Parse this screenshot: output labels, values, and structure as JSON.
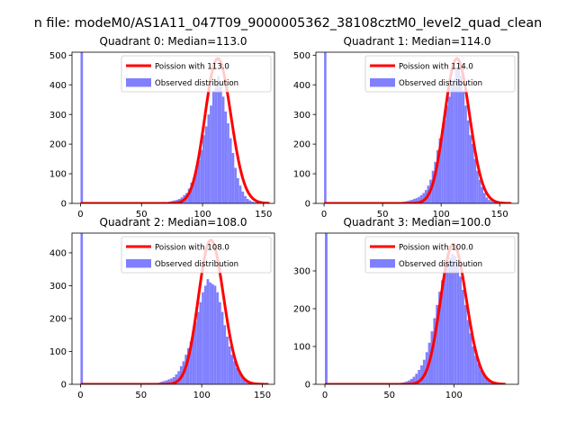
{
  "figure": {
    "suptitle": "n file: modeM0/AS1A11_047T09_9000005362_38108cztM0_level2_quad_clean"
  },
  "chart_data": [
    {
      "type": "bar",
      "title": "Quadrant 0: Median=113.0",
      "xlim": [
        -7,
        159
      ],
      "ylim": [
        0,
        510
      ],
      "xticks": [
        0,
        50,
        100,
        150
      ],
      "yticks": [
        0,
        100,
        200,
        300,
        400,
        500
      ],
      "legend": {
        "placement": "top-right",
        "entries": [
          "Poission with 113.0",
          "Observed distribution"
        ]
      },
      "zero_bin": {
        "x": 0,
        "count": 510
      },
      "histogram": {
        "bin_width": 2,
        "bins": [
          {
            "x": 62,
            "count": 3
          },
          {
            "x": 64,
            "count": 4
          },
          {
            "x": 66,
            "count": 3
          },
          {
            "x": 68,
            "count": 5
          },
          {
            "x": 70,
            "count": 4
          },
          {
            "x": 72,
            "count": 6
          },
          {
            "x": 74,
            "count": 8
          },
          {
            "x": 76,
            "count": 10
          },
          {
            "x": 78,
            "count": 12
          },
          {
            "x": 80,
            "count": 15
          },
          {
            "x": 82,
            "count": 20
          },
          {
            "x": 84,
            "count": 28
          },
          {
            "x": 86,
            "count": 35
          },
          {
            "x": 88,
            "count": 50
          },
          {
            "x": 90,
            "count": 70
          },
          {
            "x": 92,
            "count": 85
          },
          {
            "x": 94,
            "count": 110
          },
          {
            "x": 96,
            "count": 145
          },
          {
            "x": 98,
            "count": 180
          },
          {
            "x": 100,
            "count": 230
          },
          {
            "x": 102,
            "count": 260
          },
          {
            "x": 104,
            "count": 300
          },
          {
            "x": 106,
            "count": 330
          },
          {
            "x": 108,
            "count": 380
          },
          {
            "x": 110,
            "count": 400
          },
          {
            "x": 112,
            "count": 430
          },
          {
            "x": 114,
            "count": 395
          },
          {
            "x": 116,
            "count": 360
          },
          {
            "x": 118,
            "count": 310
          },
          {
            "x": 120,
            "count": 270
          },
          {
            "x": 122,
            "count": 220
          },
          {
            "x": 124,
            "count": 170
          },
          {
            "x": 126,
            "count": 120
          },
          {
            "x": 128,
            "count": 85
          },
          {
            "x": 130,
            "count": 60
          },
          {
            "x": 132,
            "count": 40
          },
          {
            "x": 134,
            "count": 25
          },
          {
            "x": 136,
            "count": 15
          },
          {
            "x": 138,
            "count": 10
          },
          {
            "x": 140,
            "count": 6
          },
          {
            "x": 142,
            "count": 4
          },
          {
            "x": 144,
            "count": 3
          },
          {
            "x": 146,
            "count": 2
          },
          {
            "x": 148,
            "count": 1
          }
        ]
      },
      "poisson_fit": {
        "label": "Poission with 113.0",
        "lambda": 113.0,
        "peak": 488,
        "x_range": [
          0,
          155
        ]
      }
    },
    {
      "type": "bar",
      "title": "Quadrant 1: Median=114.0",
      "xlim": [
        -7,
        166
      ],
      "ylim": [
        0,
        510
      ],
      "xticks": [
        0,
        50,
        100,
        150
      ],
      "yticks": [
        0,
        100,
        200,
        300,
        400,
        500
      ],
      "legend": {
        "placement": "top-right",
        "entries": [
          "Poission with 114.0",
          "Observed distribution"
        ]
      },
      "zero_bin": {
        "x": 0,
        "count": 510
      },
      "histogram": {
        "bin_width": 2,
        "bins": [
          {
            "x": 62,
            "count": 3
          },
          {
            "x": 64,
            "count": 4
          },
          {
            "x": 66,
            "count": 5
          },
          {
            "x": 68,
            "count": 6
          },
          {
            "x": 70,
            "count": 8
          },
          {
            "x": 72,
            "count": 10
          },
          {
            "x": 74,
            "count": 12
          },
          {
            "x": 76,
            "count": 15
          },
          {
            "x": 78,
            "count": 18
          },
          {
            "x": 80,
            "count": 22
          },
          {
            "x": 82,
            "count": 28
          },
          {
            "x": 84,
            "count": 35
          },
          {
            "x": 86,
            "count": 45
          },
          {
            "x": 88,
            "count": 60
          },
          {
            "x": 90,
            "count": 80
          },
          {
            "x": 92,
            "count": 110
          },
          {
            "x": 94,
            "count": 140
          },
          {
            "x": 96,
            "count": 180
          },
          {
            "x": 98,
            "count": 220
          },
          {
            "x": 100,
            "count": 250
          },
          {
            "x": 102,
            "count": 280
          },
          {
            "x": 104,
            "count": 330
          },
          {
            "x": 106,
            "count": 360
          },
          {
            "x": 108,
            "count": 400
          },
          {
            "x": 110,
            "count": 420
          },
          {
            "x": 112,
            "count": 460
          },
          {
            "x": 114,
            "count": 470
          },
          {
            "x": 116,
            "count": 430
          },
          {
            "x": 118,
            "count": 380
          },
          {
            "x": 120,
            "count": 330
          },
          {
            "x": 122,
            "count": 280
          },
          {
            "x": 124,
            "count": 230
          },
          {
            "x": 126,
            "count": 200
          },
          {
            "x": 128,
            "count": 150
          },
          {
            "x": 130,
            "count": 110
          },
          {
            "x": 132,
            "count": 80
          },
          {
            "x": 134,
            "count": 55
          },
          {
            "x": 136,
            "count": 35
          },
          {
            "x": 138,
            "count": 20
          },
          {
            "x": 140,
            "count": 12
          },
          {
            "x": 142,
            "count": 8
          },
          {
            "x": 144,
            "count": 5
          },
          {
            "x": 146,
            "count": 3
          },
          {
            "x": 148,
            "count": 2
          }
        ]
      },
      "poisson_fit": {
        "label": "Poission with 114.0",
        "lambda": 114.0,
        "peak": 488,
        "x_range": [
          0,
          160
        ]
      }
    },
    {
      "type": "bar",
      "title": "Quadrant 2: Median=108.0",
      "xlim": [
        -7,
        160
      ],
      "ylim": [
        0,
        460
      ],
      "xticks": [
        0,
        50,
        100,
        150
      ],
      "yticks": [
        0,
        100,
        200,
        300,
        400
      ],
      "legend": {
        "placement": "top-right",
        "entries": [
          "Poission with 108.0",
          "Observed distribution"
        ]
      },
      "zero_bin": {
        "x": 0,
        "count": 460
      },
      "histogram": {
        "bin_width": 2,
        "bins": [
          {
            "x": 60,
            "count": 2
          },
          {
            "x": 62,
            "count": 3
          },
          {
            "x": 64,
            "count": 5
          },
          {
            "x": 66,
            "count": 8
          },
          {
            "x": 68,
            "count": 10
          },
          {
            "x": 70,
            "count": 12
          },
          {
            "x": 72,
            "count": 15
          },
          {
            "x": 74,
            "count": 18
          },
          {
            "x": 76,
            "count": 22
          },
          {
            "x": 78,
            "count": 30
          },
          {
            "x": 80,
            "count": 40
          },
          {
            "x": 82,
            "count": 55
          },
          {
            "x": 84,
            "count": 70
          },
          {
            "x": 86,
            "count": 90
          },
          {
            "x": 88,
            "count": 110
          },
          {
            "x": 90,
            "count": 130
          },
          {
            "x": 92,
            "count": 160
          },
          {
            "x": 94,
            "count": 190
          },
          {
            "x": 96,
            "count": 220
          },
          {
            "x": 98,
            "count": 250
          },
          {
            "x": 100,
            "count": 280
          },
          {
            "x": 102,
            "count": 300
          },
          {
            "x": 104,
            "count": 320
          },
          {
            "x": 106,
            "count": 310
          },
          {
            "x": 108,
            "count": 305
          },
          {
            "x": 110,
            "count": 300
          },
          {
            "x": 112,
            "count": 280
          },
          {
            "x": 114,
            "count": 250
          },
          {
            "x": 116,
            "count": 220
          },
          {
            "x": 118,
            "count": 180
          },
          {
            "x": 120,
            "count": 145
          },
          {
            "x": 122,
            "count": 115
          },
          {
            "x": 124,
            "count": 90
          },
          {
            "x": 126,
            "count": 70
          },
          {
            "x": 128,
            "count": 50
          },
          {
            "x": 130,
            "count": 35
          },
          {
            "x": 132,
            "count": 25
          },
          {
            "x": 134,
            "count": 15
          },
          {
            "x": 136,
            "count": 10
          },
          {
            "x": 138,
            "count": 6
          },
          {
            "x": 140,
            "count": 3
          },
          {
            "x": 142,
            "count": 2
          }
        ]
      },
      "poisson_fit": {
        "label": "Poission with 108.0",
        "lambda": 108.0,
        "peak": 438,
        "x_range": [
          0,
          155
        ]
      }
    },
    {
      "type": "bar",
      "title": "Quadrant 3: Median=100.0",
      "xlim": [
        -7,
        150
      ],
      "ylim": [
        0,
        400
      ],
      "xticks": [
        0,
        50,
        100
      ],
      "yticks": [
        0,
        100,
        200,
        300
      ],
      "legend": {
        "placement": "top-right",
        "entries": [
          "Poission with 100.0",
          "Observed distribution"
        ]
      },
      "zero_bin": {
        "x": 0,
        "count": 400
      },
      "histogram": {
        "bin_width": 2,
        "bins": [
          {
            "x": 54,
            "count": 2
          },
          {
            "x": 56,
            "count": 3
          },
          {
            "x": 58,
            "count": 4
          },
          {
            "x": 60,
            "count": 5
          },
          {
            "x": 62,
            "count": 7
          },
          {
            "x": 64,
            "count": 10
          },
          {
            "x": 66,
            "count": 14
          },
          {
            "x": 68,
            "count": 20
          },
          {
            "x": 70,
            "count": 28
          },
          {
            "x": 72,
            "count": 38
          },
          {
            "x": 74,
            "count": 50
          },
          {
            "x": 76,
            "count": 65
          },
          {
            "x": 78,
            "count": 85
          },
          {
            "x": 80,
            "count": 110
          },
          {
            "x": 82,
            "count": 140
          },
          {
            "x": 84,
            "count": 175
          },
          {
            "x": 86,
            "count": 210
          },
          {
            "x": 88,
            "count": 245
          },
          {
            "x": 90,
            "count": 275
          },
          {
            "x": 92,
            "count": 300
          },
          {
            "x": 94,
            "count": 320
          },
          {
            "x": 96,
            "count": 335
          },
          {
            "x": 98,
            "count": 345
          },
          {
            "x": 100,
            "count": 340
          },
          {
            "x": 102,
            "count": 315
          },
          {
            "x": 104,
            "count": 285
          },
          {
            "x": 106,
            "count": 250
          },
          {
            "x": 108,
            "count": 210
          },
          {
            "x": 110,
            "count": 170
          },
          {
            "x": 112,
            "count": 135
          },
          {
            "x": 114,
            "count": 100
          },
          {
            "x": 116,
            "count": 75
          },
          {
            "x": 118,
            "count": 55
          },
          {
            "x": 120,
            "count": 38
          },
          {
            "x": 122,
            "count": 26
          },
          {
            "x": 124,
            "count": 17
          },
          {
            "x": 126,
            "count": 11
          },
          {
            "x": 128,
            "count": 7
          },
          {
            "x": 130,
            "count": 4
          },
          {
            "x": 132,
            "count": 2
          }
        ]
      },
      "poisson_fit": {
        "label": "Poission with 100.0",
        "lambda": 100.0,
        "peak": 370,
        "x_range": [
          0,
          140
        ]
      }
    }
  ],
  "style": {
    "bar_color": "#8080ff",
    "fit_color": "#ff0000",
    "axis_color": "#000000",
    "background": "#ffffff"
  }
}
